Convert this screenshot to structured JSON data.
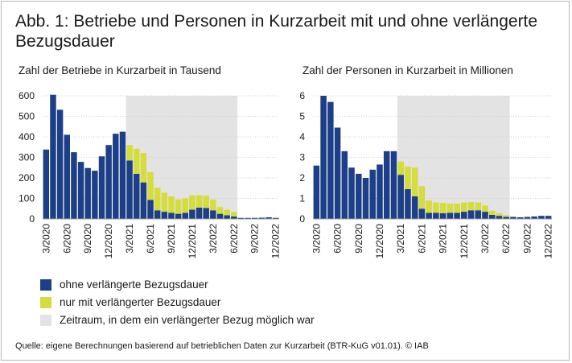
{
  "title": "Abb. 1: Betriebe und Personen in Kurzarbeit mit und ohne verlängerte Bezugsdauer",
  "source": "Quelle: eigene Berechnungen basierend auf betrieblichen Daten zur Kurzarbeit (BTR-KuG v01.01).  © IAB",
  "colors": {
    "ohne": "#1c3f87",
    "nur": "#d4dc3e",
    "shade": "#e3e3e3",
    "grid": "#d0d0d0"
  },
  "legend": [
    {
      "label": "ohne verlängerte Bezugsdauer",
      "color": "#1c3f87"
    },
    {
      "label": "nur mit verlängerter Bezugsdauer",
      "color": "#d4dc3e"
    },
    {
      "label": "Zeitraum, in dem ein verlängerter Bezug möglich war",
      "color": "#e3e3e3"
    }
  ],
  "chart_data": [
    {
      "type": "bar",
      "stacked": true,
      "title": "Zahl der Betriebe in Kurzarbeit in Tausend",
      "ylim": [
        0,
        600
      ],
      "yticks": [
        "0",
        "100",
        "200",
        "300",
        "400",
        "500",
        "600"
      ],
      "grid": true,
      "categories": [
        "3/2020",
        "4/2020",
        "5/2020",
        "6/2020",
        "7/2020",
        "8/2020",
        "9/2020",
        "10/2020",
        "11/2020",
        "12/2020",
        "1/2021",
        "2/2021",
        "3/2021",
        "4/2021",
        "5/2021",
        "6/2021",
        "7/2021",
        "8/2021",
        "9/2021",
        "10/2021",
        "11/2021",
        "12/2021",
        "1/2022",
        "2/2022",
        "3/2022",
        "4/2022",
        "5/2022",
        "6/2022",
        "7/2022",
        "8/2022",
        "9/2022",
        "10/2022",
        "11/2022",
        "12/2022"
      ],
      "xticklabels": [
        "3/2020",
        "6/2020",
        "9/2020",
        "12/2020",
        "3/2021",
        "6/2021",
        "9/2021",
        "12/2021",
        "3/2022",
        "6/2022",
        "9/2022",
        "12/2022"
      ],
      "shaded_period": [
        "3/2021",
        "6/2022"
      ],
      "series": [
        {
          "name": "ohne verlängerte Bezugsdauer",
          "values": [
            338,
            605,
            532,
            410,
            325,
            278,
            248,
            235,
            305,
            360,
            415,
            425,
            285,
            220,
            178,
            93,
            42,
            35,
            30,
            25,
            30,
            45,
            55,
            53,
            42,
            25,
            18,
            12,
            5,
            5,
            5,
            6,
            8,
            5
          ]
        },
        {
          "name": "nur mit verlängerter Bezugsdauer",
          "values": [
            0,
            0,
            0,
            0,
            0,
            0,
            0,
            0,
            0,
            0,
            0,
            0,
            75,
            122,
            143,
            135,
            110,
            93,
            80,
            70,
            70,
            70,
            60,
            60,
            52,
            33,
            27,
            22,
            0,
            0,
            0,
            0,
            0,
            0
          ]
        }
      ]
    },
    {
      "type": "bar",
      "stacked": true,
      "title": "Zahl der Personen in Kurzarbeit in Millionen",
      "ylim": [
        0,
        6
      ],
      "yticks": [
        "0",
        "1",
        "2",
        "3",
        "4",
        "5",
        "6"
      ],
      "grid": true,
      "categories": [
        "3/2020",
        "4/2020",
        "5/2020",
        "6/2020",
        "7/2020",
        "8/2020",
        "9/2020",
        "10/2020",
        "11/2020",
        "12/2020",
        "1/2021",
        "2/2021",
        "3/2021",
        "4/2021",
        "5/2021",
        "6/2021",
        "7/2021",
        "8/2021",
        "9/2021",
        "10/2021",
        "11/2021",
        "12/2021",
        "1/2022",
        "2/2022",
        "3/2022",
        "4/2022",
        "5/2022",
        "6/2022",
        "7/2022",
        "8/2022",
        "9/2022",
        "10/2022",
        "11/2022",
        "12/2022"
      ],
      "xticklabels": [
        "3/2020",
        "6/2020",
        "9/2020",
        "12/2020",
        "3/2021",
        "6/2021",
        "9/2021",
        "12/2021",
        "3/2022",
        "6/2022",
        "9/2022",
        "12/2022"
      ],
      "shaded_period": [
        "3/2021",
        "6/2022"
      ],
      "series": [
        {
          "name": "ohne verlängerte Bezugsdauer",
          "values": [
            2.6,
            6.0,
            5.7,
            4.45,
            3.3,
            2.5,
            2.2,
            2.0,
            2.4,
            2.65,
            3.3,
            3.3,
            2.15,
            1.45,
            1.1,
            0.5,
            0.3,
            0.3,
            0.28,
            0.3,
            0.3,
            0.35,
            0.42,
            0.42,
            0.35,
            0.2,
            0.15,
            0.1,
            0.1,
            0.08,
            0.1,
            0.12,
            0.15,
            0.15
          ]
        },
        {
          "name": "nur mit verlängerter Bezugsdauer",
          "values": [
            0,
            0,
            0,
            0,
            0,
            0,
            0,
            0,
            0,
            0,
            0,
            0,
            0.65,
            1.1,
            1.4,
            1.1,
            0.6,
            0.5,
            0.5,
            0.45,
            0.45,
            0.45,
            0.4,
            0.38,
            0.3,
            0.2,
            0.12,
            0.08,
            0,
            0,
            0,
            0,
            0,
            0
          ]
        }
      ]
    }
  ]
}
